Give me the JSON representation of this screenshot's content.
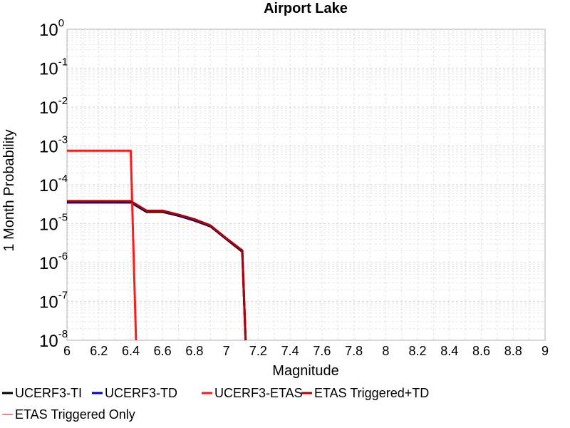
{
  "chart_data": {
    "type": "line",
    "title": "Airport Lake",
    "xlabel": "Magnitude",
    "ylabel": "1 Month Probability",
    "xlim": [
      6,
      9
    ],
    "ylim": [
      1e-08,
      1
    ],
    "yscale": "log",
    "grid": true,
    "legend_position": "bottom",
    "x_ticks": [
      "6",
      "6.2",
      "6.4",
      "6.6",
      "6.8",
      "7",
      "7.2",
      "7.4",
      "7.6",
      "7.8",
      "8",
      "8.2",
      "8.4",
      "8.6",
      "8.8",
      "9"
    ],
    "y_ticks": [
      {
        "base": "10",
        "exp": "-8"
      },
      {
        "base": "10",
        "exp": "-7"
      },
      {
        "base": "10",
        "exp": "-6"
      },
      {
        "base": "10",
        "exp": "-5"
      },
      {
        "base": "10",
        "exp": "-4"
      },
      {
        "base": "10",
        "exp": "-3"
      },
      {
        "base": "10",
        "exp": "-2"
      },
      {
        "base": "10",
        "exp": "-1"
      },
      {
        "base": "10",
        "exp": "0"
      }
    ],
    "series": [
      {
        "name": "UCERF3-TI",
        "color": "#000000",
        "x": [
          6.0,
          6.4,
          6.5,
          6.6,
          6.7,
          6.8,
          6.9,
          7.0,
          7.1,
          7.13
        ],
        "y": [
          3.5e-05,
          3.5e-05,
          2e-05,
          2e-05,
          1.6e-05,
          1.2e-05,
          8.5e-06,
          4e-06,
          1.9e-06,
          1e-09
        ]
      },
      {
        "name": "UCERF3-TD",
        "color": "#0000cc",
        "x": [
          6.0,
          6.4,
          6.5,
          6.6,
          6.7,
          6.8,
          6.9,
          7.0,
          7.1,
          7.13
        ],
        "y": [
          3.6e-05,
          3.6e-05,
          2.1e-05,
          2.1e-05,
          1.65e-05,
          1.25e-05,
          8.8e-06,
          4.1e-06,
          2e-06,
          1e-09
        ]
      },
      {
        "name": "UCERF3-ETAS",
        "color": "#ff1a1a",
        "x": [
          6.0,
          6.4,
          6.44
        ],
        "y": [
          0.00075,
          0.00075,
          1e-09
        ]
      },
      {
        "name": "ETAS Triggered+TD",
        "color": "#b30000",
        "x": [
          6.0,
          6.4,
          6.5,
          6.6,
          6.7,
          6.8,
          6.9,
          7.0,
          7.1,
          7.13
        ],
        "y": [
          3.8e-05,
          3.8e-05,
          2.15e-05,
          2.15e-05,
          1.7e-05,
          1.3e-05,
          9e-06,
          4.2e-06,
          2.05e-06,
          1e-09
        ]
      },
      {
        "name": "ETAS Triggered Only",
        "color": "#ff8080",
        "x": [],
        "y": []
      }
    ]
  }
}
